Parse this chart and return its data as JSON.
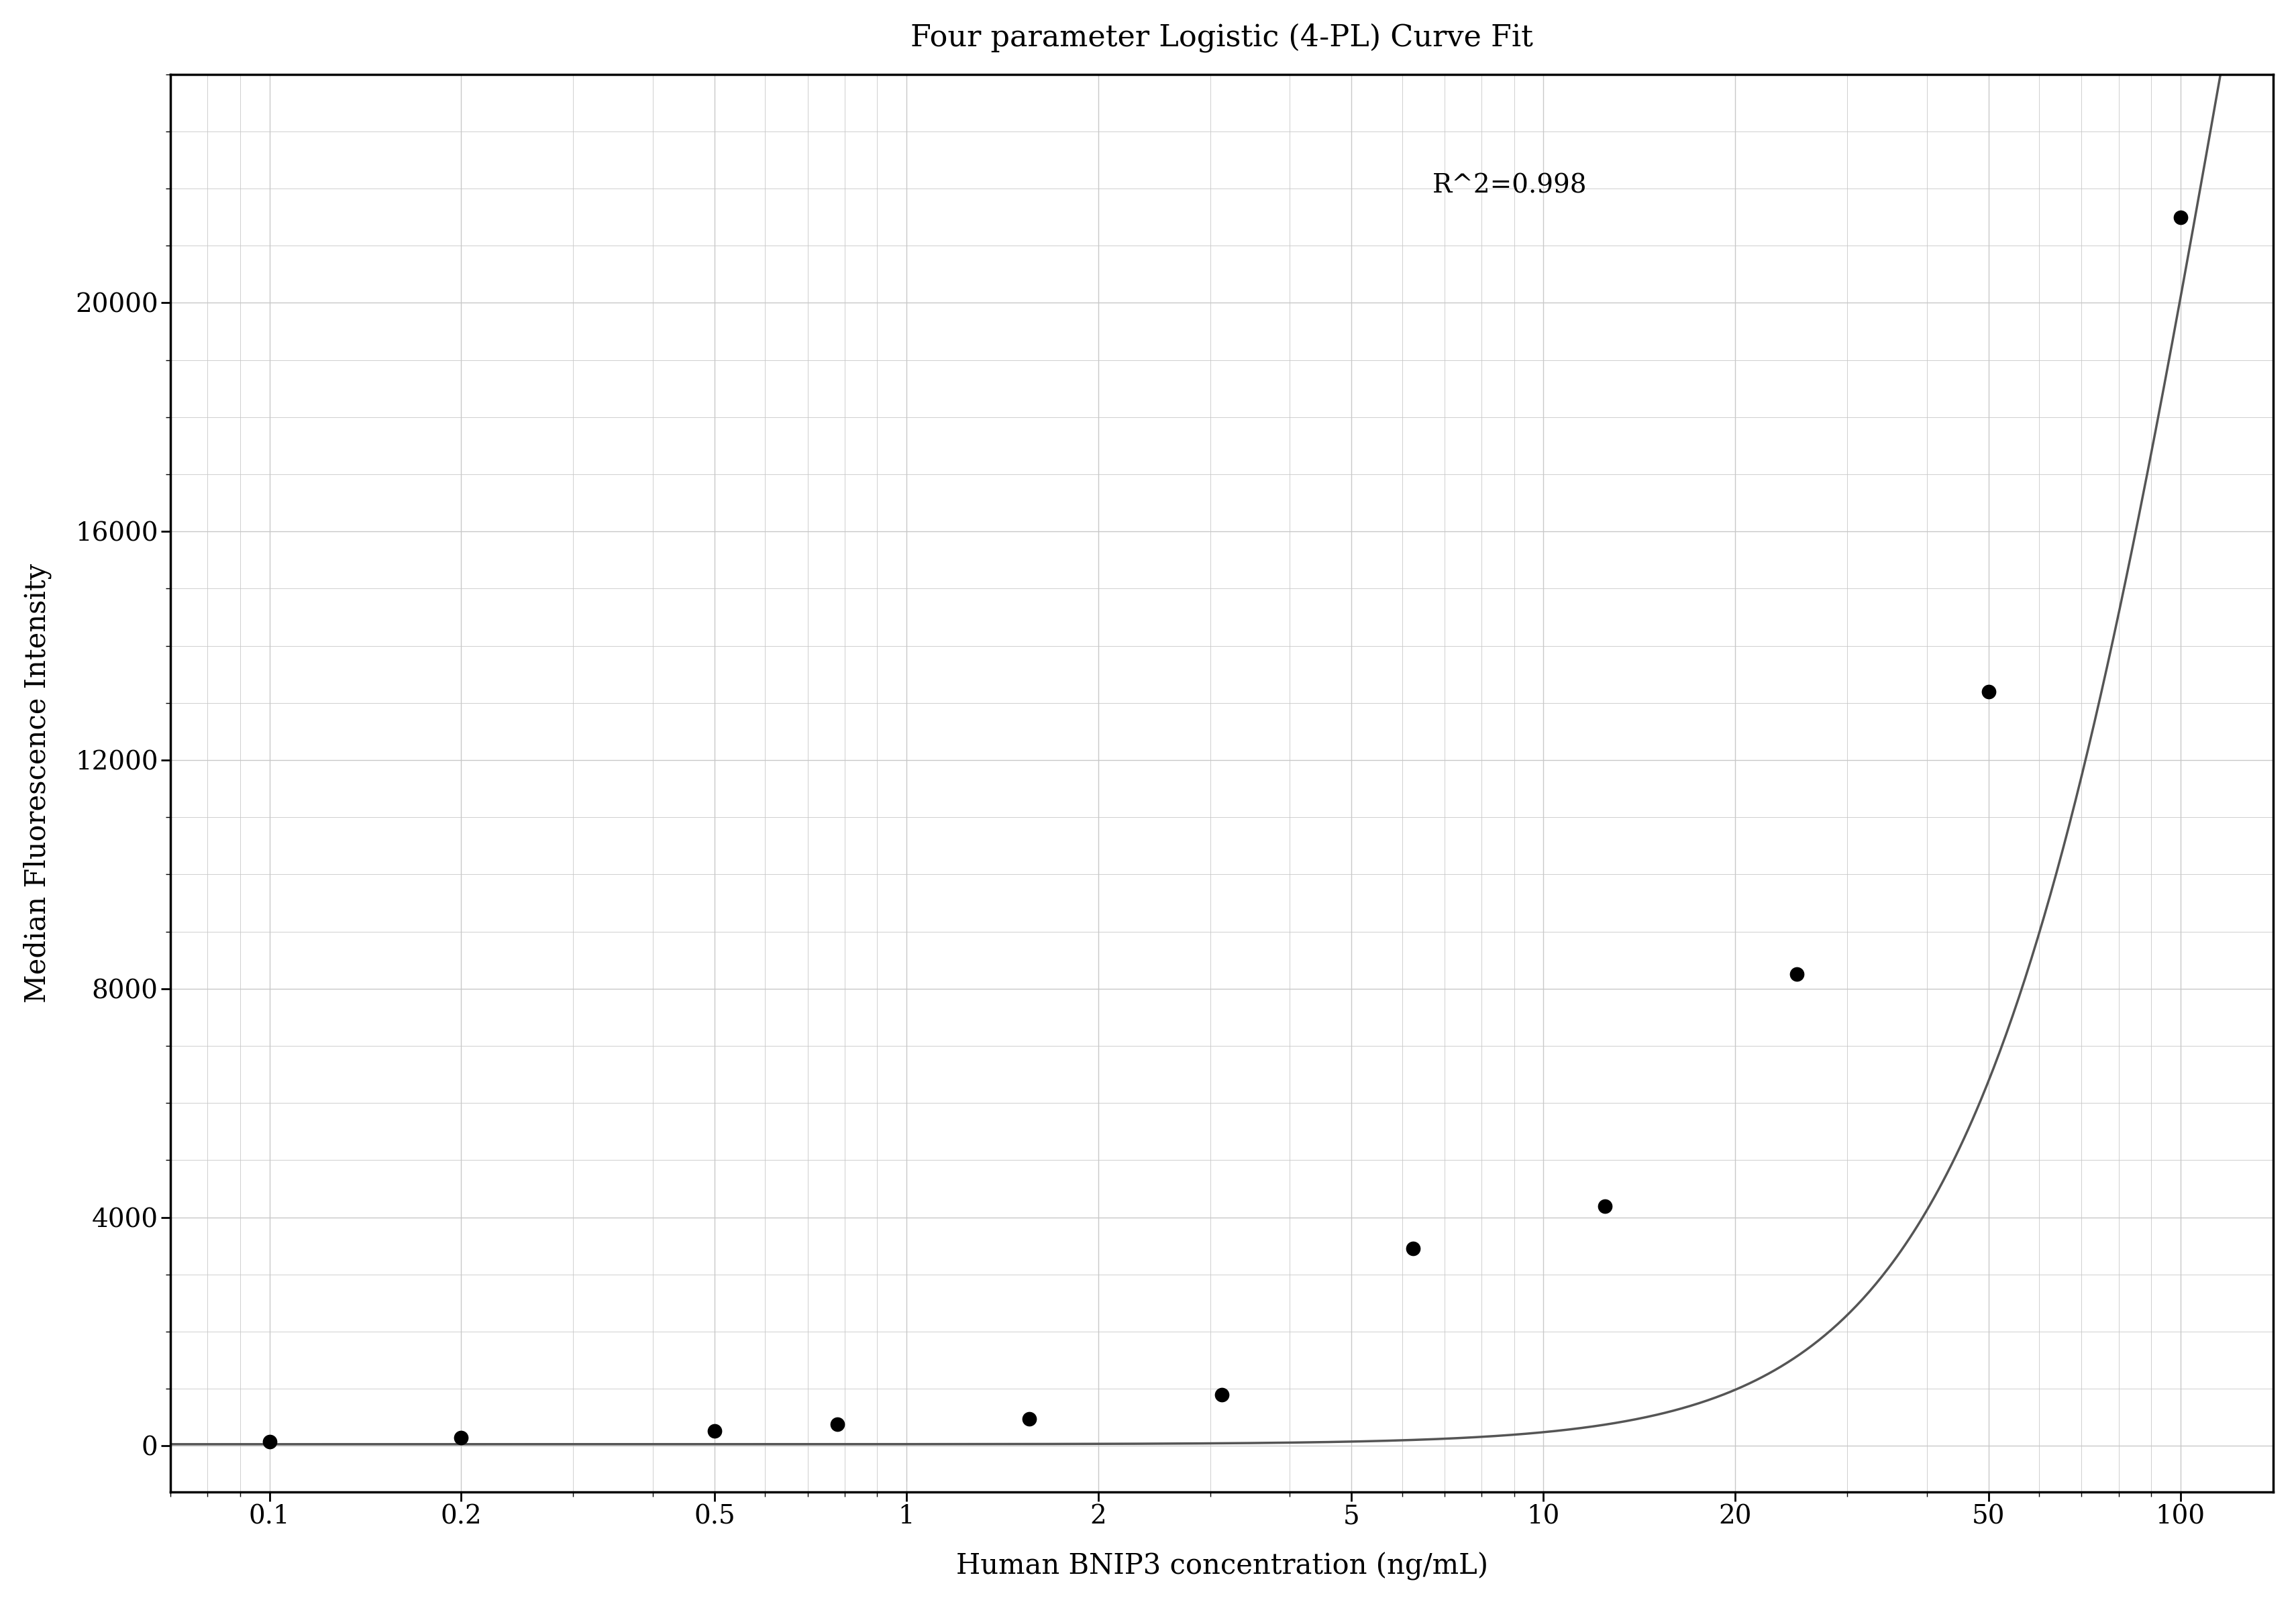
{
  "title": "Four parameter Logistic (4-PL) Curve Fit",
  "xlabel": "Human BNIP3 concentration (ng/mL)",
  "ylabel": "Median Fluorescence Intensity",
  "r_squared": "R^2=0.998",
  "data_x": [
    0.1,
    0.2,
    0.5,
    0.78,
    1.56,
    3.13,
    6.25,
    12.5,
    25.0,
    50.0,
    100.0
  ],
  "data_y": [
    80,
    150,
    260,
    380,
    470,
    900,
    3450,
    4200,
    8250,
    13200,
    21500
  ],
  "xscale": "log",
  "xticks": [
    0.1,
    0.2,
    0.5,
    1,
    2,
    5,
    10,
    20,
    50,
    100
  ],
  "xtick_labels": [
    "0.1",
    "0.2",
    "0.5",
    "1",
    "2",
    "5",
    "10",
    "20",
    "50",
    "100"
  ],
  "ylim": [
    -800,
    24000
  ],
  "yticks": [
    0,
    4000,
    8000,
    12000,
    16000,
    20000
  ],
  "xlim": [
    0.07,
    140
  ],
  "grid_color": "#c8c8c8",
  "line_color": "#555555",
  "dot_color": "#000000",
  "bg_color": "#ffffff",
  "title_fontsize": 32,
  "label_fontsize": 30,
  "tick_fontsize": 28,
  "annotation_fontsize": 28,
  "4pl_A": 30.0,
  "4pl_B": 2.2,
  "4pl_C": 120.0,
  "4pl_D": 50000.0
}
